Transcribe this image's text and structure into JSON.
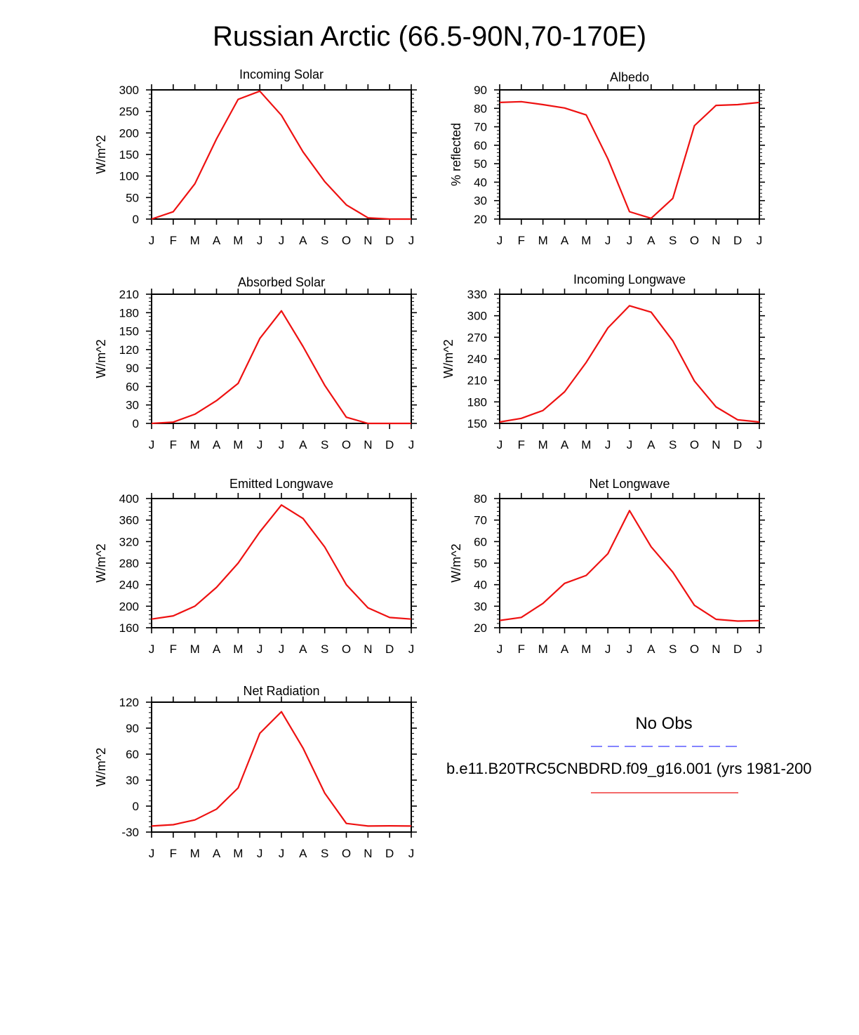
{
  "page": {
    "title": "Russian Arctic (66.5-90N,70-170E)"
  },
  "legend": {
    "obs_label": "No Obs",
    "obs_color": "#3b3bff",
    "model_label": "b.e11.B20TRC5CNBDRD.f09_g16.001 (yrs 1981-200",
    "model_color": "#ee1111"
  },
  "chart_data": [
    {
      "type": "line",
      "title": "Incoming Solar",
      "ylabel": "W/m^2",
      "ylim": [
        0,
        300
      ],
      "yticks": [
        "0",
        "50",
        "100",
        "150",
        "200",
        "250",
        "300"
      ],
      "categories": [
        "J",
        "F",
        "M",
        "A",
        "M",
        "J",
        "J",
        "A",
        "S",
        "O",
        "N",
        "D",
        "J"
      ],
      "values": [
        0,
        17,
        82,
        186,
        278,
        297,
        241,
        156,
        87,
        33,
        3,
        0,
        0
      ]
    },
    {
      "type": "line",
      "title": "Albedo",
      "ylabel": "% reflected",
      "ylim": [
        20,
        90
      ],
      "yticks": [
        "20",
        "30",
        "40",
        "50",
        "60",
        "70",
        "80",
        "90"
      ],
      "categories": [
        "J",
        "F",
        "M",
        "A",
        "M",
        "J",
        "J",
        "A",
        "S",
        "O",
        "N",
        "D",
        "J"
      ],
      "values": [
        83.2,
        83.6,
        82,
        80.2,
        76.4,
        52.6,
        24,
        20.4,
        31.2,
        70.6,
        81.6,
        82,
        83.2
      ]
    },
    {
      "type": "line",
      "title": "Absorbed Solar",
      "ylabel": "W/m^2",
      "ylim": [
        0,
        210
      ],
      "yticks": [
        "0",
        "30",
        "60",
        "90",
        "120",
        "150",
        "180",
        "210"
      ],
      "categories": [
        "J",
        "F",
        "M",
        "A",
        "M",
        "J",
        "J",
        "A",
        "S",
        "O",
        "N",
        "D",
        "J"
      ],
      "values": [
        0,
        2,
        15,
        37,
        65,
        138,
        183,
        125,
        62,
        10,
        0,
        0,
        0
      ]
    },
    {
      "type": "line",
      "title": "Incoming Longwave",
      "ylabel": "W/m^2",
      "ylim": [
        150,
        330
      ],
      "yticks": [
        "150",
        "180",
        "210",
        "240",
        "270",
        "300",
        "330"
      ],
      "categories": [
        "J",
        "F",
        "M",
        "A",
        "M",
        "J",
        "J",
        "A",
        "S",
        "O",
        "N",
        "D",
        "J"
      ],
      "values": [
        152,
        157,
        168,
        194,
        235,
        283,
        314,
        305,
        265,
        209,
        173,
        155,
        152
      ]
    },
    {
      "type": "line",
      "title": "Emitted Longwave",
      "ylabel": "W/m^2",
      "ylim": [
        160,
        400
      ],
      "yticks": [
        "160",
        "200",
        "240",
        "280",
        "320",
        "360",
        "400"
      ],
      "categories": [
        "J",
        "F",
        "M",
        "A",
        "M",
        "J",
        "J",
        "A",
        "S",
        "O",
        "N",
        "D",
        "J"
      ],
      "values": [
        176,
        182,
        200,
        235,
        280,
        338,
        388,
        363,
        310,
        240,
        197,
        179,
        176
      ]
    },
    {
      "type": "line",
      "title": "Net Longwave",
      "ylabel": "W/m^2",
      "ylim": [
        20,
        80
      ],
      "yticks": [
        "20",
        "30",
        "40",
        "50",
        "60",
        "70",
        "80"
      ],
      "categories": [
        "J",
        "F",
        "M",
        "A",
        "M",
        "J",
        "J",
        "A",
        "S",
        "O",
        "N",
        "D",
        "J"
      ],
      "values": [
        23.4,
        24.8,
        31.3,
        40.6,
        44.3,
        54.4,
        74.4,
        57.6,
        45.8,
        30.4,
        23.9,
        23.1,
        23.3
      ]
    },
    {
      "type": "line",
      "title": "Net Radiation",
      "ylabel": "W/m^2",
      "ylim": [
        -30,
        120
      ],
      "yticks": [
        "-30",
        "0",
        "30",
        "60",
        "90",
        "120"
      ],
      "categories": [
        "J",
        "F",
        "M",
        "A",
        "M",
        "J",
        "J",
        "A",
        "S",
        "O",
        "N",
        "D",
        "J"
      ],
      "values": [
        -23,
        -21.5,
        -16,
        -3.5,
        21,
        84,
        109,
        67,
        15,
        -20,
        -23,
        -22.8,
        -23
      ]
    }
  ]
}
